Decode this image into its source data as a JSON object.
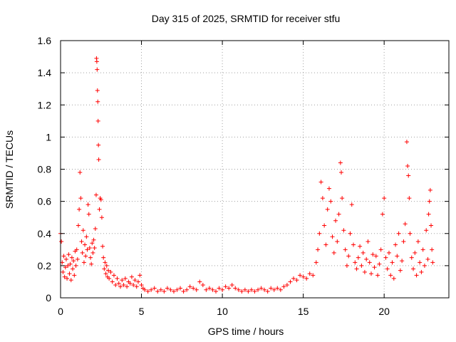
{
  "chart_data": {
    "type": "scatter",
    "title": "Day 315 of 2025, SRMTID for receiver stfu",
    "xlabel": "GPS time / hours",
    "ylabel": "SRMTID / TECUs",
    "xlim": [
      0,
      24
    ],
    "ylim": [
      0,
      1.6
    ],
    "xticks": [
      0,
      5,
      10,
      15,
      20
    ],
    "xtick_labels": [
      "0",
      "5",
      "10",
      "15",
      "20"
    ],
    "yticks": [
      0,
      0.2,
      0.4,
      0.6,
      0.8,
      1.0,
      1.2,
      1.4,
      1.6
    ],
    "ytick_labels": [
      "0",
      "0.2",
      "0.4",
      "0.6",
      "0.8",
      "1",
      "1.2",
      "1.4",
      "1.6"
    ],
    "grid": true,
    "marker": "+",
    "color": "#ff0000",
    "series": [
      {
        "name": "SRMTID",
        "points": [
          [
            0.0,
            0.4
          ],
          [
            0.05,
            0.35
          ],
          [
            0.1,
            0.22
          ],
          [
            0.15,
            0.16
          ],
          [
            0.2,
            0.26
          ],
          [
            0.25,
            0.13
          ],
          [
            0.3,
            0.19
          ],
          [
            0.35,
            0.24
          ],
          [
            0.4,
            0.12
          ],
          [
            0.45,
            0.2
          ],
          [
            0.5,
            0.27
          ],
          [
            0.55,
            0.15
          ],
          [
            0.6,
            0.21
          ],
          [
            0.65,
            0.11
          ],
          [
            0.7,
            0.25
          ],
          [
            0.75,
            0.18
          ],
          [
            0.8,
            0.23
          ],
          [
            0.85,
            0.14
          ],
          [
            0.9,
            0.29
          ],
          [
            0.95,
            0.2
          ],
          [
            1.0,
            0.3
          ],
          [
            1.05,
            0.24
          ],
          [
            1.1,
            0.45
          ],
          [
            1.15,
            0.55
          ],
          [
            1.2,
            0.78
          ],
          [
            1.25,
            0.62
          ],
          [
            1.3,
            0.35
          ],
          [
            1.35,
            0.28
          ],
          [
            1.4,
            0.42
          ],
          [
            1.45,
            0.22
          ],
          [
            1.5,
            0.33
          ],
          [
            1.55,
            0.26
          ],
          [
            1.6,
            0.38
          ],
          [
            1.65,
            0.3
          ],
          [
            1.7,
            0.58
          ],
          [
            1.75,
            0.52
          ],
          [
            1.8,
            0.31
          ],
          [
            1.85,
            0.25
          ],
          [
            1.9,
            0.21
          ],
          [
            1.95,
            0.34
          ],
          [
            2.0,
            0.28
          ],
          [
            2.05,
            0.36
          ],
          [
            2.1,
            0.31
          ],
          [
            2.15,
            0.43
          ],
          [
            2.2,
            0.64
          ],
          [
            2.22,
            1.49
          ],
          [
            2.24,
            1.47
          ],
          [
            2.26,
            1.42
          ],
          [
            2.28,
            1.29
          ],
          [
            2.3,
            1.22
          ],
          [
            2.32,
            1.1
          ],
          [
            2.34,
            0.95
          ],
          [
            2.36,
            0.86
          ],
          [
            2.4,
            0.55
          ],
          [
            2.45,
            0.62
          ],
          [
            2.5,
            0.61
          ],
          [
            2.55,
            0.5
          ],
          [
            2.6,
            0.32
          ],
          [
            2.65,
            0.25
          ],
          [
            2.7,
            0.18
          ],
          [
            2.75,
            0.22
          ],
          [
            2.8,
            0.15
          ],
          [
            2.85,
            0.2
          ],
          [
            2.9,
            0.13
          ],
          [
            2.95,
            0.17
          ],
          [
            3.0,
            0.12
          ],
          [
            3.1,
            0.16
          ],
          [
            3.2,
            0.1
          ],
          [
            3.3,
            0.14
          ],
          [
            3.4,
            0.08
          ],
          [
            3.5,
            0.12
          ],
          [
            3.6,
            0.09
          ],
          [
            3.7,
            0.07
          ],
          [
            3.8,
            0.11
          ],
          [
            3.9,
            0.08
          ],
          [
            4.0,
            0.12
          ],
          [
            4.1,
            0.07
          ],
          [
            4.2,
            0.1
          ],
          [
            4.3,
            0.09
          ],
          [
            4.4,
            0.13
          ],
          [
            4.5,
            0.08
          ],
          [
            4.6,
            0.11
          ],
          [
            4.7,
            0.07
          ],
          [
            4.8,
            0.1
          ],
          [
            4.9,
            0.14
          ],
          [
            5.0,
            0.08
          ],
          [
            5.1,
            0.06
          ],
          [
            5.2,
            0.05
          ],
          [
            5.4,
            0.04
          ],
          [
            5.6,
            0.05
          ],
          [
            5.8,
            0.06
          ],
          [
            6.0,
            0.04
          ],
          [
            6.2,
            0.05
          ],
          [
            6.4,
            0.04
          ],
          [
            6.6,
            0.06
          ],
          [
            6.8,
            0.05
          ],
          [
            7.0,
            0.04
          ],
          [
            7.2,
            0.05
          ],
          [
            7.4,
            0.06
          ],
          [
            7.6,
            0.04
          ],
          [
            7.8,
            0.05
          ],
          [
            8.0,
            0.07
          ],
          [
            8.2,
            0.06
          ],
          [
            8.4,
            0.05
          ],
          [
            8.6,
            0.1
          ],
          [
            8.8,
            0.08
          ],
          [
            9.0,
            0.05
          ],
          [
            9.2,
            0.06
          ],
          [
            9.4,
            0.05
          ],
          [
            9.6,
            0.04
          ],
          [
            9.8,
            0.06
          ],
          [
            10.0,
            0.05
          ],
          [
            10.2,
            0.07
          ],
          [
            10.4,
            0.06
          ],
          [
            10.6,
            0.08
          ],
          [
            10.8,
            0.06
          ],
          [
            11.0,
            0.05
          ],
          [
            11.2,
            0.04
          ],
          [
            11.4,
            0.05
          ],
          [
            11.6,
            0.04
          ],
          [
            11.8,
            0.05
          ],
          [
            12.0,
            0.04
          ],
          [
            12.2,
            0.05
          ],
          [
            12.4,
            0.06
          ],
          [
            12.6,
            0.05
          ],
          [
            12.8,
            0.04
          ],
          [
            13.0,
            0.06
          ],
          [
            13.2,
            0.05
          ],
          [
            13.4,
            0.06
          ],
          [
            13.6,
            0.05
          ],
          [
            13.8,
            0.07
          ],
          [
            14.0,
            0.08
          ],
          [
            14.2,
            0.1
          ],
          [
            14.4,
            0.12
          ],
          [
            14.6,
            0.11
          ],
          [
            14.8,
            0.14
          ],
          [
            15.0,
            0.13
          ],
          [
            15.2,
            0.12
          ],
          [
            15.4,
            0.15
          ],
          [
            15.6,
            0.14
          ],
          [
            15.8,
            0.22
          ],
          [
            15.9,
            0.3
          ],
          [
            16.0,
            0.4
          ],
          [
            16.1,
            0.72
          ],
          [
            16.2,
            0.62
          ],
          [
            16.3,
            0.45
          ],
          [
            16.4,
            0.33
          ],
          [
            16.5,
            0.55
          ],
          [
            16.6,
            0.68
          ],
          [
            16.7,
            0.6
          ],
          [
            16.8,
            0.38
          ],
          [
            16.9,
            0.28
          ],
          [
            17.0,
            0.48
          ],
          [
            17.1,
            0.35
          ],
          [
            17.2,
            0.52
          ],
          [
            17.3,
            0.84
          ],
          [
            17.35,
            0.78
          ],
          [
            17.4,
            0.62
          ],
          [
            17.5,
            0.42
          ],
          [
            17.6,
            0.3
          ],
          [
            17.7,
            0.2
          ],
          [
            17.8,
            0.26
          ],
          [
            17.9,
            0.4
          ],
          [
            18.0,
            0.58
          ],
          [
            18.1,
            0.33
          ],
          [
            18.2,
            0.22
          ],
          [
            18.3,
            0.18
          ],
          [
            18.4,
            0.25
          ],
          [
            18.5,
            0.32
          ],
          [
            18.6,
            0.2
          ],
          [
            18.7,
            0.28
          ],
          [
            18.8,
            0.16
          ],
          [
            18.9,
            0.24
          ],
          [
            19.0,
            0.35
          ],
          [
            19.1,
            0.22
          ],
          [
            19.2,
            0.15
          ],
          [
            19.3,
            0.27
          ],
          [
            19.4,
            0.19
          ],
          [
            19.5,
            0.26
          ],
          [
            19.6,
            0.14
          ],
          [
            19.7,
            0.21
          ],
          [
            19.8,
            0.3
          ],
          [
            19.9,
            0.52
          ],
          [
            20.0,
            0.62
          ],
          [
            20.1,
            0.25
          ],
          [
            20.2,
            0.18
          ],
          [
            20.3,
            0.28
          ],
          [
            20.4,
            0.14
          ],
          [
            20.5,
            0.22
          ],
          [
            20.6,
            0.12
          ],
          [
            20.7,
            0.33
          ],
          [
            20.8,
            0.26
          ],
          [
            20.9,
            0.4
          ],
          [
            21.0,
            0.17
          ],
          [
            21.1,
            0.23
          ],
          [
            21.2,
            0.35
          ],
          [
            21.3,
            0.46
          ],
          [
            21.4,
            0.97
          ],
          [
            21.45,
            0.82
          ],
          [
            21.5,
            0.76
          ],
          [
            21.55,
            0.62
          ],
          [
            21.6,
            0.4
          ],
          [
            21.7,
            0.25
          ],
          [
            21.8,
            0.18
          ],
          [
            21.9,
            0.28
          ],
          [
            22.0,
            0.14
          ],
          [
            22.1,
            0.35
          ],
          [
            22.2,
            0.22
          ],
          [
            22.3,
            0.16
          ],
          [
            22.4,
            0.3
          ],
          [
            22.5,
            0.2
          ],
          [
            22.6,
            0.42
          ],
          [
            22.7,
            0.24
          ],
          [
            22.75,
            0.52
          ],
          [
            22.8,
            0.6
          ],
          [
            22.85,
            0.67
          ],
          [
            22.9,
            0.45
          ],
          [
            22.95,
            0.3
          ],
          [
            23.0,
            0.22
          ]
        ]
      }
    ]
  }
}
